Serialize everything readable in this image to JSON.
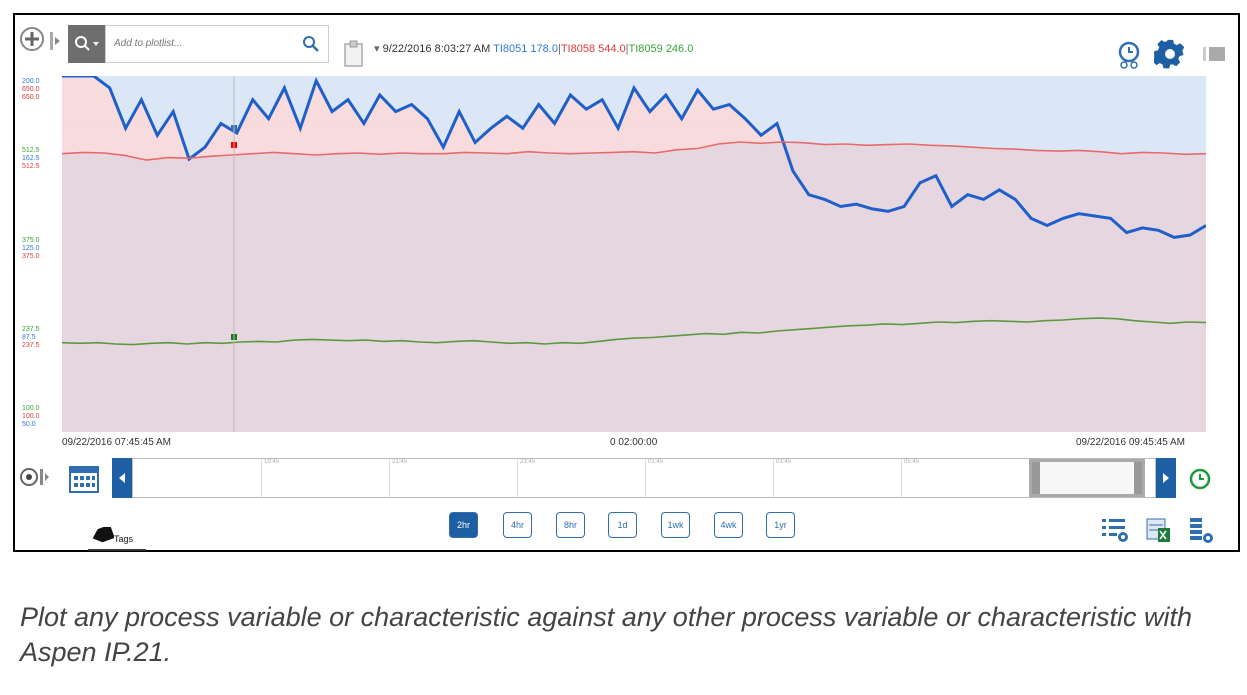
{
  "toolbar": {
    "search_placeholder": "Add to plotlist...",
    "legend_timestamp": "9/22/2016 8:03:27 AM",
    "legend_items": [
      {
        "text": "TI8051 178.0",
        "color": "#2f7ad8"
      },
      {
        "text": "TI8058 544.0",
        "color": "#e23a3a"
      },
      {
        "text": "TI8059 246.0",
        "color": "#37a337"
      }
    ]
  },
  "y_axis_labels": [
    {
      "values": [
        "200.0",
        "650.0",
        "650.0"
      ]
    },
    {
      "values": [
        "512.5",
        "162.5",
        "512.5"
      ]
    },
    {
      "values": [
        "375.0",
        "125.0",
        "375.0"
      ]
    },
    {
      "values": [
        "237.5",
        "87.5",
        "237.5"
      ]
    },
    {
      "values": [
        "100.0",
        "100.0",
        "50.0"
      ]
    }
  ],
  "time_axis": {
    "start": "09/22/2016 07:45:45 AM",
    "span": "0 02:00:00",
    "end": "09/22/2016 09:45:45 AM"
  },
  "navigator_ticks": [
    "19:45",
    "21:45",
    "23:45",
    "01:45",
    "03:45",
    "05:45",
    "45"
  ],
  "range_buttons": [
    {
      "label": "2hr",
      "active": true
    },
    {
      "label": "4hr",
      "active": false
    },
    {
      "label": "8hr",
      "active": false
    },
    {
      "label": "1d",
      "active": false
    },
    {
      "label": "1wk",
      "active": false
    },
    {
      "label": "4wk",
      "active": false
    },
    {
      "label": "1yr",
      "active": false
    }
  ],
  "tags_label": "Tags",
  "caption": "Plot any process variable or characteristic against any other process variable or characteristic with Aspen IP.21.",
  "colors": {
    "blue": "#1f5fc9",
    "red": "#e86a6a",
    "green": "#5a9a3c",
    "active_button": "#1e5fa3"
  },
  "chart_data": {
    "type": "line",
    "x_range": [
      "09/22/2016 07:45:45 AM",
      "09/22/2016 09:45:45 AM"
    ],
    "grid": true,
    "series": [
      {
        "name": "TI8051",
        "color": "#1f5fc9",
        "values": [
          200,
          200,
          200,
          195,
          178,
          190,
          175,
          185,
          165,
          170,
          180,
          176,
          190,
          182,
          195,
          178,
          198,
          185,
          190,
          180,
          192,
          185,
          188,
          182,
          170,
          185,
          172,
          178,
          183,
          178,
          188,
          180,
          192,
          186,
          190,
          178,
          195,
          185,
          192,
          182,
          194,
          186,
          188,
          182,
          175,
          180,
          160,
          150,
          148,
          145,
          146,
          144,
          143,
          145,
          155,
          158,
          145,
          150,
          148,
          152,
          148,
          140,
          137,
          140,
          142,
          141,
          140,
          134,
          136,
          135,
          132,
          133,
          137
        ]
      },
      {
        "name": "TI8058",
        "color": "#e86a6a",
        "values": [
          530,
          532,
          531,
          527,
          520,
          524,
          523,
          526,
          528,
          530,
          532,
          530,
          528,
          530,
          531,
          529,
          531,
          530,
          530,
          532,
          531,
          530,
          533,
          531,
          530,
          531,
          532,
          533,
          531,
          536,
          538,
          545,
          548,
          546,
          548,
          547,
          544,
          545,
          543,
          544,
          545,
          543,
          542,
          540,
          538,
          537,
          535,
          534,
          535,
          533,
          530,
          532,
          531,
          529,
          530
        ]
      },
      {
        "name": "TI8059",
        "color": "#5a9a3c",
        "values": [
          238,
          237,
          238,
          236,
          235,
          237,
          238,
          236,
          238,
          237,
          239,
          240,
          239,
          242,
          243,
          242,
          241,
          242,
          240,
          241,
          239,
          238,
          240,
          241,
          239,
          237,
          238,
          236,
          238,
          237,
          240,
          243,
          245,
          246,
          248,
          250,
          252,
          251,
          254,
          253,
          256,
          258,
          260,
          262,
          264,
          265,
          267,
          266,
          268,
          270,
          269,
          271,
          272,
          271,
          270,
          272,
          273,
          275,
          276,
          275,
          272,
          270,
          268,
          270,
          269
        ]
      }
    ]
  }
}
